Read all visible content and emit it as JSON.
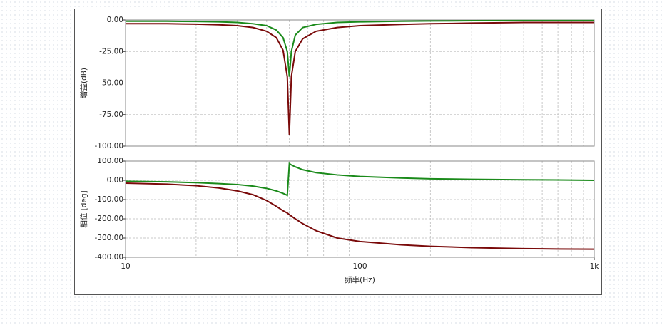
{
  "chart_data": [
    {
      "type": "line",
      "ylabel": "增益(dB)",
      "log_x": true,
      "grid": true,
      "x": [
        10,
        15,
        20,
        25,
        30,
        35,
        40,
        44,
        47,
        49,
        50,
        51,
        53,
        57,
        65,
        80,
        100,
        150,
        200,
        300,
        500,
        700,
        1000
      ],
      "xlim": [
        10,
        1000
      ],
      "xticks": [
        10,
        100,
        1000
      ],
      "ylim": [
        -100,
        0
      ],
      "yticks": [
        {
          "value": 0,
          "label": "0.00"
        },
        {
          "value": -25,
          "label": "-25.00"
        },
        {
          "value": -50,
          "label": "-50.00"
        },
        {
          "value": -75,
          "label": "-75.00"
        },
        {
          "value": -100,
          "label": "-100.00"
        }
      ],
      "series": [
        {
          "color": "#1a8a1a",
          "values": [
            -1,
            -1,
            -1.2,
            -1.5,
            -2,
            -3,
            -4.5,
            -8,
            -14,
            -25,
            -45,
            -25,
            -12,
            -6,
            -3.5,
            -2,
            -1.5,
            -1,
            -0.8,
            -0.6,
            -0.5,
            -0.5,
            -0.5
          ]
        },
        {
          "color": "#7a0a0a",
          "values": [
            -3,
            -3,
            -3.3,
            -3.8,
            -4.5,
            -6,
            -9,
            -14,
            -24,
            -45,
            -91,
            -45,
            -25,
            -15,
            -9,
            -6,
            -4.5,
            -3.5,
            -3,
            -2.5,
            -2,
            -2,
            -2
          ]
        }
      ]
    },
    {
      "type": "line",
      "ylabel": "相位 [deg]",
      "xlabel": "频率(Hz)",
      "log_x": true,
      "grid": true,
      "x": [
        10,
        15,
        20,
        25,
        30,
        35,
        40,
        44,
        47,
        49,
        50,
        51,
        53,
        57,
        65,
        80,
        100,
        150,
        200,
        300,
        500,
        700,
        1000
      ],
      "xlim": [
        10,
        1000
      ],
      "xticks": [
        10,
        100,
        {
          "value": 1000,
          "label": "1k"
        }
      ],
      "ylim": [
        -400,
        100
      ],
      "yticks": [
        {
          "value": 100,
          "label": "100.00"
        },
        {
          "value": 0,
          "label": "0.00"
        },
        {
          "value": -100,
          "label": "-100.00"
        },
        {
          "value": -200,
          "label": "-200.00"
        },
        {
          "value": -300,
          "label": "-300.00"
        },
        {
          "value": -400,
          "label": "-400.00"
        }
      ],
      "series": [
        {
          "color": "#1a8a1a",
          "values": [
            -5,
            -8,
            -12,
            -17,
            -22,
            -30,
            -42,
            -55,
            -68,
            -78,
            87,
            80,
            70,
            55,
            40,
            28,
            20,
            12,
            8,
            5,
            3,
            2,
            0
          ]
        },
        {
          "color": "#7a0a0a",
          "values": [
            -15,
            -20,
            -28,
            -40,
            -55,
            -75,
            -105,
            -135,
            -158,
            -170,
            -178,
            -186,
            -200,
            -225,
            -262,
            -300,
            -318,
            -335,
            -343,
            -350,
            -355,
            -357,
            -358
          ]
        }
      ]
    }
  ]
}
